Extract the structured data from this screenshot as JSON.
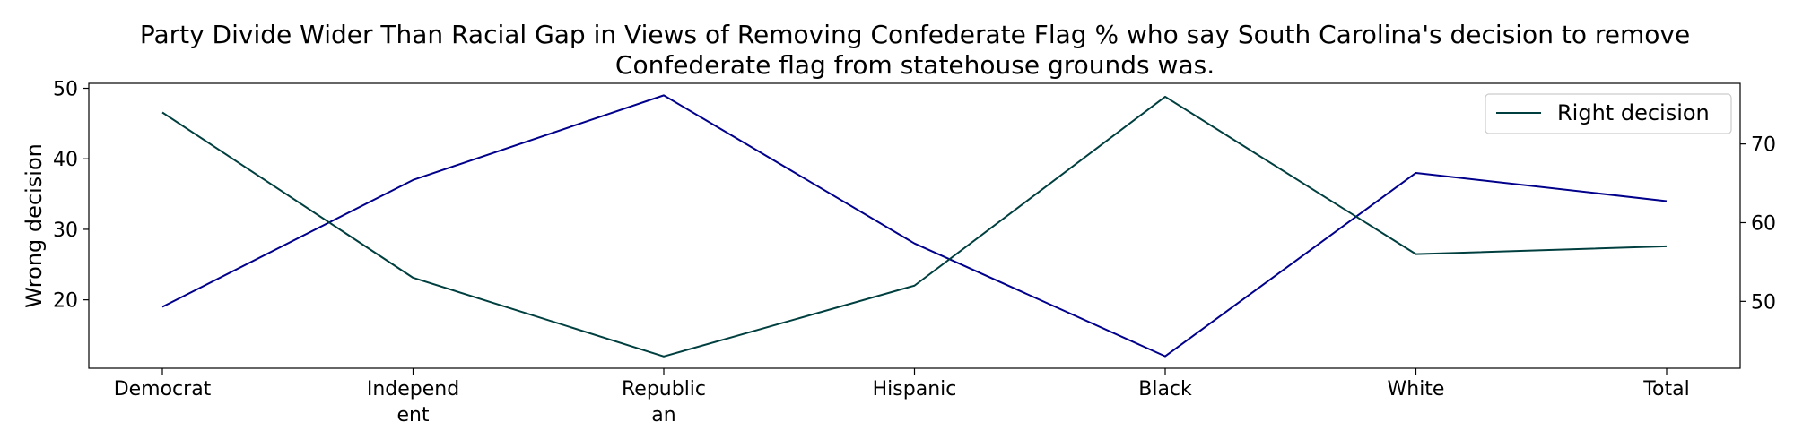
{
  "chart_data": {
    "type": "line",
    "title_lines": [
      "Party Divide Wider Than Racial Gap in Views of Removing Confederate Flag % who say South Carolina's decision to remove",
      "Confederate flag from statehouse grounds was."
    ],
    "categories": [
      [
        "Democrat"
      ],
      [
        "Independ",
        "ent"
      ],
      [
        "Republic",
        "an"
      ],
      [
        "Hispanic"
      ],
      [
        "Black"
      ],
      [
        "White"
      ],
      [
        "Total"
      ]
    ],
    "ylabel_left": "Wrong decision",
    "ylabel_right": "",
    "left_axis": {
      "range": [
        10.3,
        50.7
      ],
      "ticks": [
        "20",
        "30",
        "40",
        "50"
      ]
    },
    "right_axis": {
      "range": [
        41.5,
        77.7
      ],
      "ticks": [
        "50",
        "60",
        "70"
      ]
    },
    "series": [
      {
        "name": "Wrong decision",
        "axis": "left",
        "color": "#00008b",
        "values": [
          19,
          37,
          49,
          28,
          12,
          38,
          34
        ]
      },
      {
        "name": "Right decision",
        "axis": "right",
        "color": "#003f3f",
        "values": [
          74,
          53,
          43,
          52,
          76,
          56,
          57
        ]
      }
    ],
    "legend": {
      "placement": "top-right",
      "entries": [
        "Right decision"
      ]
    }
  }
}
